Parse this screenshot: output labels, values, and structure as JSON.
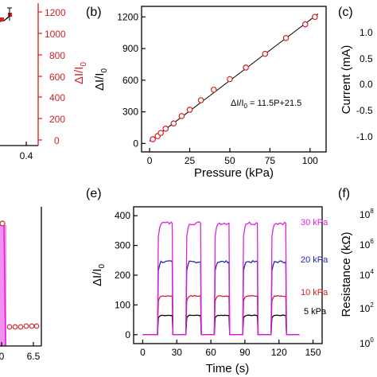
{
  "colors": {
    "red": "#d42020",
    "magenta": "#e020e0",
    "blue": "#1f2ab0",
    "black": "#000000",
    "pink_fill": "#f07ef0"
  },
  "chart_data": [
    {
      "panel": "(b)",
      "type": "scatter",
      "xlabel": "Pressure (kPa)",
      "ylabel_main": "ΔI/I",
      "ylabel_sub": "0",
      "xlim": [
        -5,
        110
      ],
      "ylim": [
        -80,
        1300
      ],
      "xticks": [
        0,
        25,
        50,
        75,
        100
      ],
      "yticks": [
        0,
        300,
        600,
        900,
        1200
      ],
      "x": [
        2,
        5,
        7,
        10,
        15,
        20,
        25,
        32,
        40,
        50,
        60,
        72,
        85,
        97,
        103
      ],
      "y": [
        40,
        70,
        100,
        140,
        190,
        260,
        320,
        410,
        510,
        610,
        720,
        850,
        1000,
        1130,
        1200
      ],
      "fit": {
        "label": "ΔI/I",
        "sub": "0",
        "rest": " = 11.5P+21.5",
        "slope": 11.5,
        "intercept": 21.5,
        "x_range": [
          0,
          105
        ]
      }
    },
    {
      "panel": "(e)",
      "type": "line",
      "xlabel": "Time (s)",
      "ylabel_main": "ΔI/I",
      "ylabel_sub": "0",
      "xlim": [
        -8,
        158
      ],
      "ylim": [
        -30,
        430
      ],
      "xticks": [
        0,
        30,
        60,
        90,
        120,
        150
      ],
      "yticks": [
        0,
        100,
        200,
        300,
        400
      ],
      "pulses": [
        [
          13,
          26
        ],
        [
          38,
          51
        ],
        [
          63,
          76
        ],
        [
          88,
          101
        ],
        [
          113,
          126
        ]
      ],
      "time_end": 138,
      "series": [
        {
          "name": "30 kPa",
          "level": 375,
          "color": "#e020e0"
        },
        {
          "name": "20 kPa",
          "level": 245,
          "color": "#1f2ab0"
        },
        {
          "name": "10 kPa",
          "level": 130,
          "color": "#d42020"
        },
        {
          "name": "5 kPa",
          "level": 65,
          "color": "#000000"
        }
      ]
    },
    {
      "panel": "partial-left-top",
      "type": "line",
      "y2_ticks": [
        "1200",
        "1000",
        "800",
        "600",
        "400",
        "200",
        "0"
      ],
      "y2_label_main": "ΔI/I",
      "y2_label_sub": "0",
      "x_ticks_visible": [
        "0.4"
      ]
    },
    {
      "panel": "partial-left-bottom",
      "type": "scatter",
      "x_ticks_visible": [
        "0",
        "6.5"
      ]
    },
    {
      "panel": "(c)",
      "type": "line",
      "ylabel": "Current (mA)",
      "yticks": [
        "1.0",
        "0.5",
        "0.0",
        "-0.5",
        "-1.0"
      ]
    },
    {
      "panel": "(f)",
      "type": "line",
      "ylabel": "Resistance (kΩ)",
      "yticks_base": "10",
      "yticks_exp": [
        "8",
        "6",
        "4",
        "2",
        "0"
      ]
    }
  ],
  "labels": {
    "b_panel": "(b)",
    "e_panel": "(e)",
    "c_panel": "(c)",
    "f_panel": "(f)",
    "b_xlabel": "Pressure (kPa)",
    "b_ylabel_main": "ΔI/I",
    "b_ylabel_sub": "0",
    "b_fit_main": "ΔI/I",
    "b_fit_sub": "0",
    "b_fit_rest": " = 11.5P+21.5",
    "e_xlabel": "Time (s)",
    "e_ylabel_main": "ΔI/I",
    "e_ylabel_sub": "0",
    "e_leg_30": "30 kPa",
    "e_leg_20": "20 kPa",
    "e_leg_10": "10 kPa",
    "e_leg_5": "5 kPa",
    "left_y2_main": "ΔI/I",
    "left_y2_sub": "0",
    "left_xtick": "0.4",
    "left_bottom_x0": "0",
    "left_bottom_x65": "6.5",
    "c_ylabel": "Current (mA)",
    "f_ylabel": "Resistance (kΩ)",
    "c_t1": "1.0",
    "c_t2": "0.5",
    "c_t3": "0.0",
    "c_t4": "-0.5",
    "c_t5": "-1.0",
    "f_base": "10",
    "f_e8": "8",
    "f_e6": "6",
    "f_e4": "4",
    "f_e2": "2",
    "f_e0": "0",
    "r1200": "1200",
    "r1000": "1000",
    "r800": "800",
    "r600": "600",
    "r400": "400",
    "r200": "200",
    "r0": "0"
  }
}
